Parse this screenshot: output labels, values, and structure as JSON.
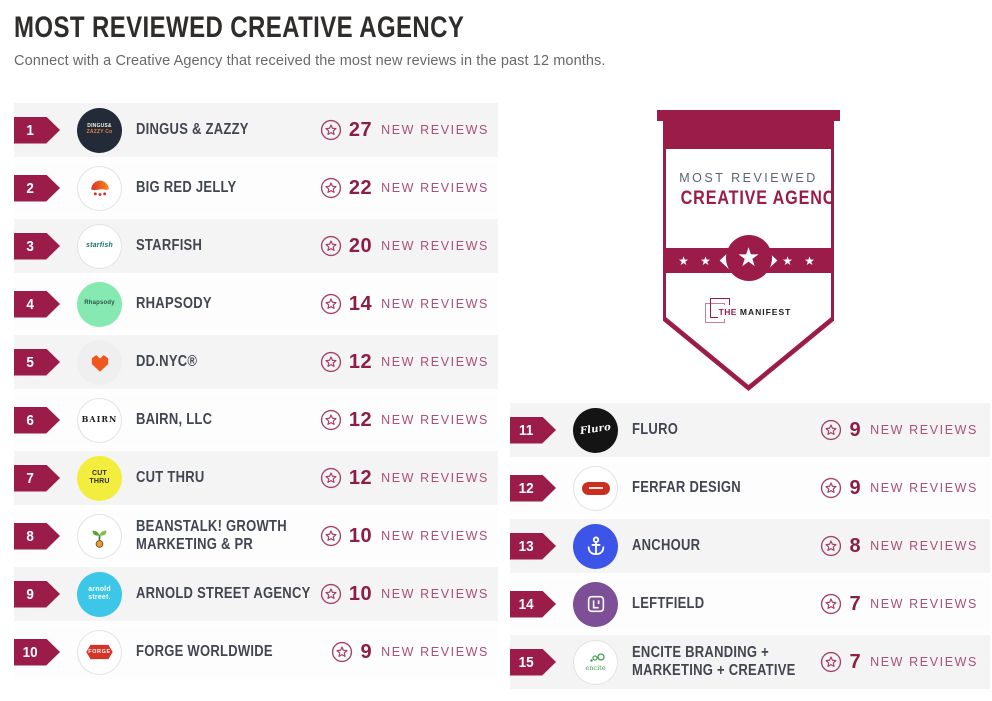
{
  "page": {
    "title": "MOST REVIEWED CREATIVE AGENCY",
    "subtitle": "Connect with a Creative Agency that received the most new reviews in the past 12 months."
  },
  "award_badge": {
    "line1": "MOST REVIEWED",
    "line2": "CREATIVE AGENCY",
    "stars_left": "★ ★",
    "stars_right": "★ ★",
    "medal_star": "★",
    "logo": {
      "the": "THE",
      "manifest": "MANIFEST"
    }
  },
  "reviews_label": "NEW REVIEWS",
  "colors": {
    "accent_maroon": "#9b1c48",
    "count_text": "#8c1d47",
    "reviews_label_text": "#a85077",
    "company_name_text": "#414650",
    "row_shaded": "#f5f4f5",
    "row_plain": "#fdfdfd",
    "title_text": "#2f2d2b",
    "subtitle_text": "#696969"
  },
  "rankings": [
    {
      "rank": "1",
      "name": "DINGUS & ZAZZY",
      "reviews": "27",
      "logo": {
        "icon": "dingus-zazzy-logo",
        "kind": "text",
        "bg": "#232b38",
        "lines": [
          {
            "text": "DINGUS&",
            "color": "#f2ece6",
            "size": 5
          },
          {
            "text": "ZAZZY Co",
            "color": "#e8823f",
            "size": 5
          }
        ]
      }
    },
    {
      "rank": "2",
      "name": "BIG RED JELLY",
      "reviews": "22",
      "logo": {
        "icon": "big-red-jelly-logo",
        "kind": "jelly",
        "bg": "#ffffff",
        "border": true
      }
    },
    {
      "rank": "3",
      "name": "STARFISH",
      "reviews": "20",
      "logo": {
        "icon": "starfish-logo",
        "kind": "text",
        "bg": "#ffffff",
        "border": true,
        "lines": [
          {
            "text": "starfish",
            "color": "#17756d",
            "size": 7,
            "style": "italic"
          }
        ]
      }
    },
    {
      "rank": "4",
      "name": "RHAPSODY",
      "reviews": "14",
      "logo": {
        "icon": "rhapsody-logo",
        "kind": "text",
        "bg": "#86e9b2",
        "lines": [
          {
            "text": "Rhapsody",
            "color": "#29584b",
            "size": 6
          }
        ]
      }
    },
    {
      "rank": "5",
      "name": "DD.NYC®",
      "reviews": "12",
      "logo": {
        "icon": "ddnyc-logo",
        "kind": "heart",
        "bg": "#efefef"
      }
    },
    {
      "rank": "6",
      "name": "BAIRN, LLC",
      "reviews": "12",
      "logo": {
        "icon": "bairn-logo",
        "kind": "text",
        "bg": "#ffffff",
        "border": true,
        "lines": [
          {
            "text": "BAIRN",
            "color": "#222222",
            "size": 8,
            "style": "serif"
          }
        ]
      }
    },
    {
      "rank": "7",
      "name": "CUT THRU",
      "reviews": "12",
      "logo": {
        "icon": "cut-thru-logo",
        "kind": "text",
        "bg": "#f3ee3e",
        "lines": [
          {
            "text": "CUT",
            "color": "#2b2b2b",
            "size": 7
          },
          {
            "text": "THRU",
            "color": "#2b2b2b",
            "size": 7
          }
        ]
      }
    },
    {
      "rank": "8",
      "name": "BEANSTALK! GROWTH MARKETING & PR",
      "reviews": "10",
      "logo": {
        "icon": "beanstalk-logo",
        "kind": "sprout",
        "bg": "#ffffff",
        "border": true
      }
    },
    {
      "rank": "9",
      "name": "ARNOLD STREET AGENCY",
      "reviews": "10",
      "logo": {
        "icon": "arnold-street-logo",
        "kind": "text",
        "bg": "#3cc6e8",
        "lines": [
          {
            "text": "arnold",
            "color": "#ffffff",
            "size": 7
          },
          {
            "text": "street.",
            "color": "#ffffff",
            "size": 7
          }
        ]
      }
    },
    {
      "rank": "10",
      "name": "FORGE WORLDWIDE",
      "reviews": "9",
      "logo": {
        "icon": "forge-logo",
        "kind": "forge",
        "bg": "#ffffff",
        "border": true,
        "text": "FORGE"
      }
    },
    {
      "rank": "11",
      "name": "FLURO",
      "reviews": "9",
      "logo": {
        "icon": "fluro-logo",
        "kind": "text",
        "bg": "#141414",
        "lines": [
          {
            "text": "Fluro",
            "color": "#ffffff",
            "size": 10,
            "style": "script"
          }
        ]
      }
    },
    {
      "rank": "12",
      "name": "FERFAR DESIGN",
      "reviews": "9",
      "logo": {
        "icon": "ferfar-logo",
        "kind": "ferfar",
        "bg": "#ffffff",
        "border": true
      }
    },
    {
      "rank": "13",
      "name": "ANCHOUR",
      "reviews": "8",
      "logo": {
        "icon": "anchour-logo",
        "kind": "anchor",
        "bg": "#3d54e8"
      }
    },
    {
      "rank": "14",
      "name": "LEFTFIELD",
      "reviews": "7",
      "logo": {
        "icon": "leftfield-logo",
        "kind": "leftfield",
        "bg": "#7d4f96"
      }
    },
    {
      "rank": "15",
      "name": "ENCITE BRANDING + MARKETING + CREATIVE",
      "reviews": "7",
      "logo": {
        "icon": "encite-logo",
        "kind": "encite",
        "bg": "#ffffff",
        "border": true,
        "text": "encite"
      }
    }
  ]
}
